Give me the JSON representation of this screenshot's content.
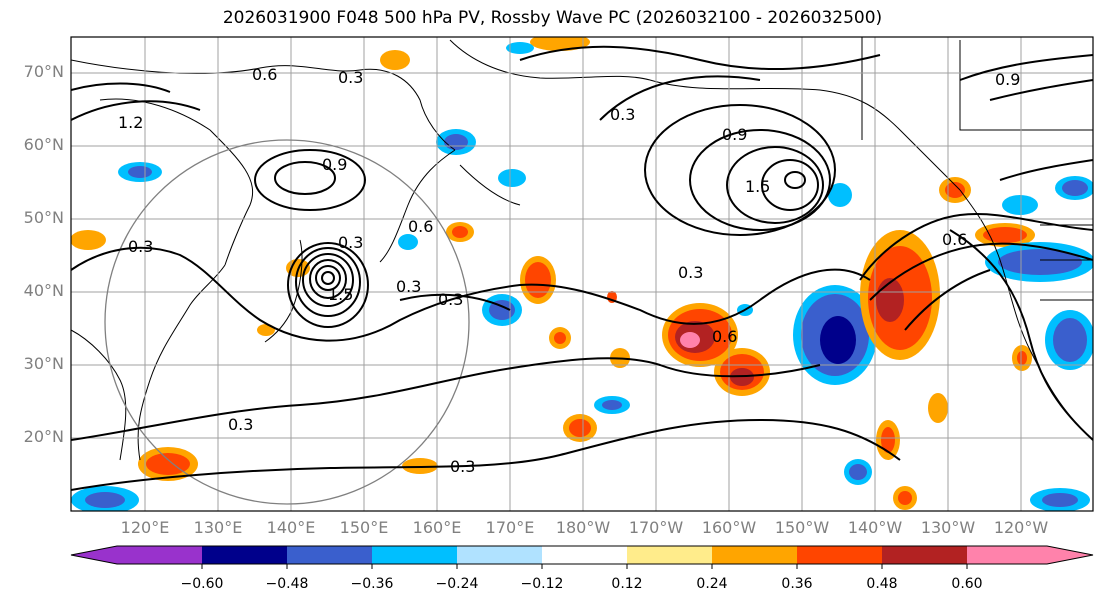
{
  "figure": {
    "title": "2026031900 F048 500 hPa PV, Rossby Wave PC (2026032100 - 2026032500)"
  },
  "map": {
    "latitude_labels": [
      "70°N",
      "60°N",
      "50°N",
      "40°N",
      "30°N",
      "20°N"
    ],
    "longitude_labels": [
      "120°E",
      "130°E",
      "140°E",
      "150°E",
      "160°E",
      "170°E",
      "180°W",
      "170°W",
      "160°W",
      "150°W",
      "140°W",
      "130°W",
      "120°W"
    ],
    "contour_labels": [
      "0.3",
      "0.3",
      "0.3",
      "0.3",
      "0.3",
      "0.3",
      "0.3",
      "0.3",
      "0.3",
      "0.6",
      "0.6",
      "0.6",
      "0.6",
      "0.9",
      "0.9",
      "0.9",
      "1.2",
      "1.5",
      "1.5"
    ]
  },
  "colorbar": {
    "tick_labels": [
      "−0.60",
      "−0.48",
      "−0.36",
      "−0.24",
      "−0.12",
      "0.12",
      "0.24",
      "0.36",
      "0.48",
      "0.60"
    ],
    "colors": [
      "#9932cc",
      "#00008b",
      "#3a5fcd",
      "#00bfff",
      "#b0e2ff",
      "#ffffff",
      "#ffec8b",
      "#ffa500",
      "#ff4500",
      "#b22222",
      "#ff82ab"
    ]
  }
}
